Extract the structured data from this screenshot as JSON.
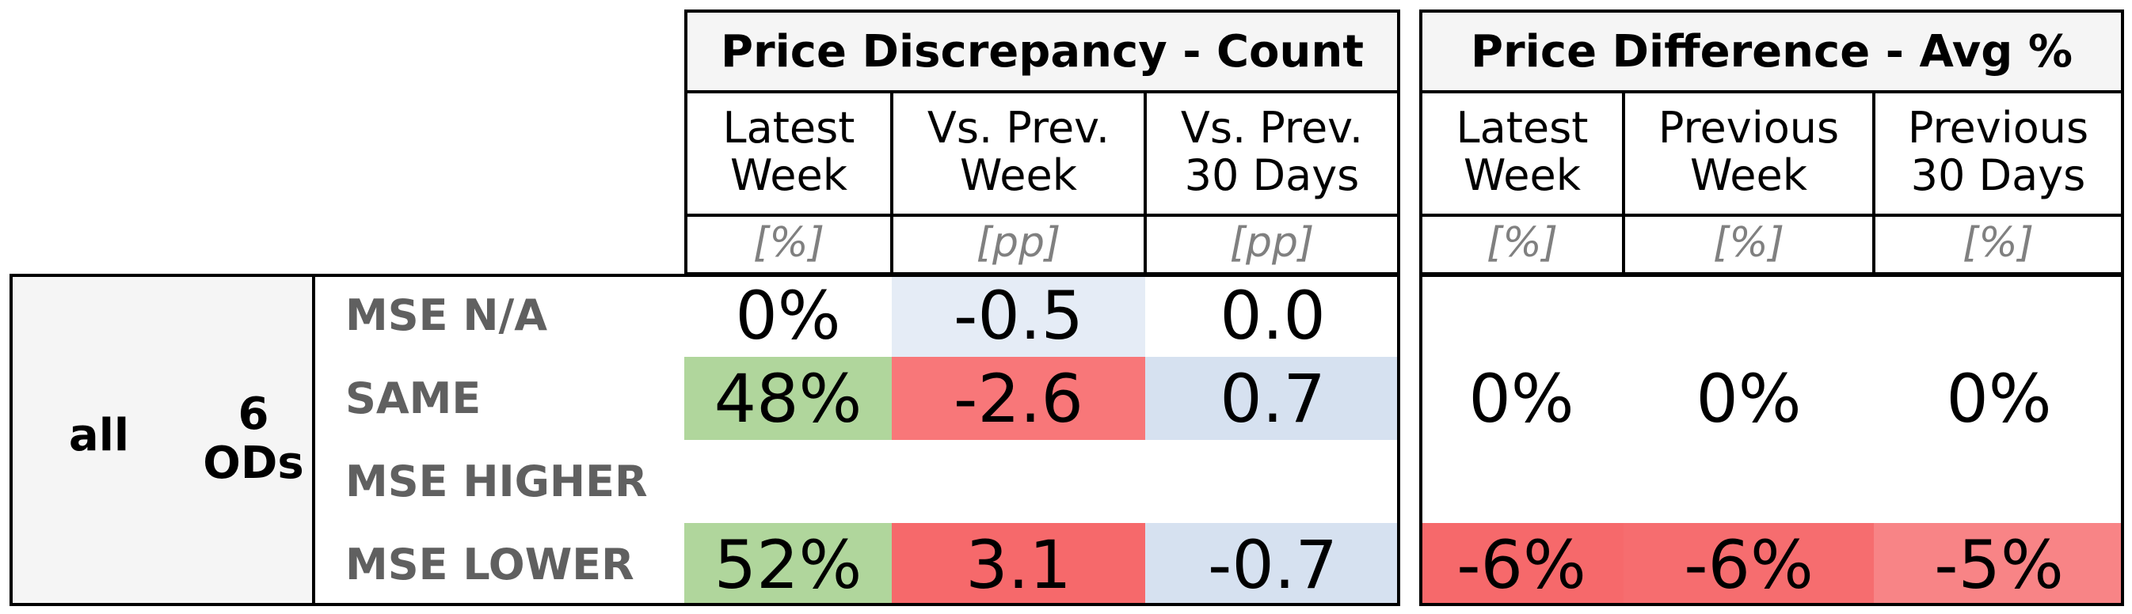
{
  "groups": {
    "count": {
      "title": "Price Discrepancy - Count",
      "columns": [
        {
          "label": "Latest\nWeek",
          "unit": "[%]"
        },
        {
          "label": "Vs. Prev.\nWeek",
          "unit": "[pp]"
        },
        {
          "label": "Vs. Prev.\n30 Days",
          "unit": "[pp]"
        }
      ]
    },
    "avg": {
      "title": "Price Difference - Avg %",
      "columns": [
        {
          "label": "Latest\nWeek",
          "unit": "[%]"
        },
        {
          "label": "Previous\nWeek",
          "unit": "[%]"
        },
        {
          "label": "Previous\n30 Days",
          "unit": "[%]"
        }
      ]
    }
  },
  "segment": {
    "label": "all",
    "od_count": "6\nODs"
  },
  "rows": [
    {
      "label": "MSE N/A",
      "count": [
        "0%",
        "-0.5",
        "0.0"
      ],
      "avg": [
        "",
        "",
        ""
      ]
    },
    {
      "label": "SAME",
      "count": [
        "48%",
        "-2.6",
        "0.7"
      ],
      "avg": [
        "0%",
        "0%",
        "0%"
      ]
    },
    {
      "label": "MSE HIGHER",
      "count": [
        "",
        "",
        ""
      ],
      "avg": [
        "",
        "",
        ""
      ]
    },
    {
      "label": "MSE LOWER",
      "count": [
        "52%",
        "3.1",
        "-0.7"
      ],
      "avg": [
        "-6%",
        "-6%",
        "-5%"
      ]
    }
  ],
  "colors": {
    "row_0": [
      "#ffffff",
      "#e5ecf6",
      "#ffffff",
      "#ffffff",
      "#ffffff",
      "#ffffff"
    ],
    "row_1": [
      "#b0d69c",
      "#f87779",
      "#d6e1f0",
      "#ffffff",
      "#ffffff",
      "#ffffff"
    ],
    "row_2": [
      "#ffffff",
      "#ffffff",
      "#ffffff",
      "#ffffff",
      "#ffffff",
      "#ffffff"
    ],
    "row_3": [
      "#b0d69c",
      "#f6696b",
      "#d6e1f0",
      "#f6696b",
      "#f66d6f",
      "#f88486"
    ]
  }
}
